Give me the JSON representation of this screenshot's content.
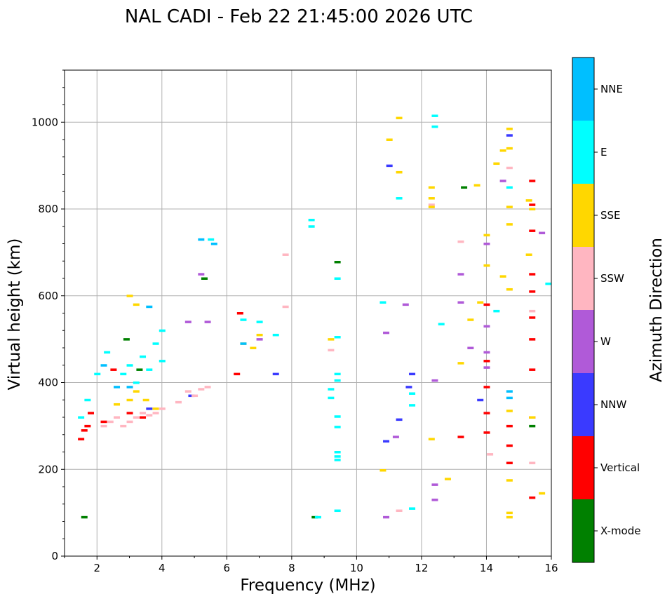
{
  "chart_data": {
    "type": "scatter",
    "title": "NAL CADI - Feb 22 21:45:00 2026 UTC",
    "xlabel": "Frequency (MHz)",
    "ylabel": "Virtual height (km)",
    "xlim": [
      1,
      16
    ],
    "ylim": [
      0,
      1120
    ],
    "xticks": [
      "2",
      "4",
      "6",
      "8",
      "10",
      "12",
      "14",
      "16"
    ],
    "yticks": [
      "0",
      "200",
      "400",
      "600",
      "800",
      "1000"
    ],
    "grid": true,
    "colorbar": {
      "label": "Azimuth Direction",
      "categories": [
        "X-mode",
        "Vertical",
        "NNW",
        "W",
        "SSW",
        "SSE",
        "E",
        "NNE"
      ],
      "colors": [
        "#008000",
        "#ff0000",
        "#3a3aff",
        "#b05ad8",
        "#ffb6c1",
        "#ffd700",
        "#00ffff",
        "#00bfff"
      ]
    },
    "series": [
      {
        "name": "X-mode",
        "points": [
          [
            1.6,
            90
          ],
          [
            8.7,
            90
          ],
          [
            13.3,
            850
          ],
          [
            15.4,
            300
          ],
          [
            9.4,
            678
          ],
          [
            3.3,
            430
          ],
          [
            2.9,
            500
          ],
          [
            5.3,
            640
          ]
        ]
      },
      {
        "name": "Vertical",
        "points": [
          [
            1.5,
            270
          ],
          [
            1.6,
            290
          ],
          [
            1.7,
            300
          ],
          [
            1.8,
            330
          ],
          [
            2.2,
            310
          ],
          [
            2.5,
            430
          ],
          [
            3.0,
            330
          ],
          [
            3.4,
            320
          ],
          [
            6.3,
            420
          ],
          [
            6.4,
            560
          ],
          [
            14.0,
            390
          ],
          [
            14.0,
            330
          ],
          [
            14.0,
            285
          ],
          [
            14.0,
            450
          ],
          [
            14.0,
            580
          ],
          [
            15.4,
            135
          ],
          [
            15.4,
            320
          ],
          [
            15.4,
            430
          ],
          [
            15.4,
            500
          ],
          [
            15.4,
            550
          ],
          [
            15.4,
            610
          ],
          [
            15.4,
            650
          ],
          [
            15.4,
            750
          ],
          [
            15.4,
            810
          ],
          [
            15.4,
            865
          ],
          [
            14.7,
            215
          ],
          [
            14.7,
            255
          ],
          [
            14.7,
            300
          ],
          [
            13.2,
            275
          ]
        ]
      },
      {
        "name": "NNW",
        "points": [
          [
            11.0,
            900
          ],
          [
            11.6,
            390
          ],
          [
            11.7,
            420
          ],
          [
            11.3,
            315
          ],
          [
            10.9,
            265
          ],
          [
            13.8,
            360
          ],
          [
            14.7,
            970
          ],
          [
            7.5,
            420
          ],
          [
            3.6,
            340
          ],
          [
            4.9,
            370
          ]
        ]
      },
      {
        "name": "W",
        "points": [
          [
            11.5,
            580
          ],
          [
            13.2,
            650
          ],
          [
            13.2,
            585
          ],
          [
            13.5,
            480
          ],
          [
            14.0,
            530
          ],
          [
            14.0,
            470
          ],
          [
            14.0,
            435
          ],
          [
            14.0,
            720
          ],
          [
            14.5,
            865
          ],
          [
            15.7,
            745
          ],
          [
            10.9,
            90
          ],
          [
            10.9,
            515
          ],
          [
            12.4,
            165
          ],
          [
            12.4,
            130
          ],
          [
            12.4,
            405
          ],
          [
            11.2,
            275
          ],
          [
            7.0,
            500
          ],
          [
            5.4,
            540
          ],
          [
            4.8,
            540
          ],
          [
            5.2,
            650
          ]
        ]
      },
      {
        "name": "SSW",
        "points": [
          [
            2.2,
            300
          ],
          [
            2.4,
            310
          ],
          [
            2.6,
            320
          ],
          [
            2.8,
            300
          ],
          [
            3.0,
            310
          ],
          [
            3.2,
            320
          ],
          [
            3.4,
            330
          ],
          [
            3.6,
            325
          ],
          [
            3.8,
            330
          ],
          [
            4.0,
            340
          ],
          [
            4.5,
            355
          ],
          [
            4.8,
            380
          ],
          [
            5.0,
            370
          ],
          [
            5.2,
            385
          ],
          [
            5.4,
            390
          ],
          [
            7.8,
            695
          ],
          [
            7.8,
            575
          ],
          [
            9.2,
            475
          ],
          [
            11.3,
            105
          ],
          [
            14.1,
            235
          ],
          [
            14.7,
            895
          ],
          [
            15.4,
            215
          ],
          [
            15.4,
            565
          ],
          [
            13.2,
            725
          ],
          [
            12.3,
            810
          ]
        ]
      },
      {
        "name": "SSE",
        "points": [
          [
            2.6,
            350
          ],
          [
            3.0,
            360
          ],
          [
            3.2,
            380
          ],
          [
            3.5,
            360
          ],
          [
            3.8,
            340
          ],
          [
            3.0,
            600
          ],
          [
            3.2,
            580
          ],
          [
            6.5,
            490
          ],
          [
            6.8,
            480
          ],
          [
            7.0,
            510
          ],
          [
            9.2,
            500
          ],
          [
            10.8,
            198
          ],
          [
            11.0,
            960
          ],
          [
            11.3,
            1010
          ],
          [
            11.3,
            885
          ],
          [
            12.3,
            270
          ],
          [
            12.3,
            850
          ],
          [
            12.3,
            825
          ],
          [
            12.3,
            805
          ],
          [
            12.8,
            178
          ],
          [
            13.2,
            445
          ],
          [
            13.5,
            545
          ],
          [
            13.8,
            585
          ],
          [
            14.0,
            740
          ],
          [
            14.0,
            670
          ],
          [
            14.3,
            905
          ],
          [
            14.5,
            935
          ],
          [
            14.5,
            645
          ],
          [
            14.7,
            985
          ],
          [
            14.7,
            940
          ],
          [
            14.7,
            805
          ],
          [
            14.7,
            765
          ],
          [
            14.7,
            615
          ],
          [
            14.7,
            335
          ],
          [
            14.7,
            175
          ],
          [
            14.7,
            100
          ],
          [
            14.7,
            90
          ],
          [
            15.3,
            820
          ],
          [
            15.3,
            695
          ],
          [
            15.4,
            800
          ],
          [
            15.7,
            145
          ],
          [
            15.4,
            320
          ],
          [
            13.7,
            855
          ]
        ]
      },
      {
        "name": "E",
        "points": [
          [
            1.5,
            320
          ],
          [
            1.7,
            360
          ],
          [
            2.0,
            420
          ],
          [
            2.3,
            470
          ],
          [
            2.8,
            420
          ],
          [
            3.0,
            440
          ],
          [
            3.2,
            400
          ],
          [
            3.4,
            460
          ],
          [
            3.6,
            430
          ],
          [
            3.8,
            490
          ],
          [
            4.0,
            450
          ],
          [
            4.0,
            520
          ],
          [
            5.5,
            730
          ],
          [
            6.5,
            545
          ],
          [
            7.0,
            540
          ],
          [
            7.5,
            510
          ],
          [
            8.6,
            775
          ],
          [
            8.6,
            760
          ],
          [
            9.2,
            385
          ],
          [
            9.2,
            365
          ],
          [
            9.4,
            640
          ],
          [
            9.4,
            505
          ],
          [
            9.4,
            420
          ],
          [
            9.4,
            405
          ],
          [
            9.4,
            322
          ],
          [
            9.4,
            298
          ],
          [
            9.4,
            240
          ],
          [
            9.4,
            230
          ],
          [
            9.4,
            222
          ],
          [
            9.4,
            105
          ],
          [
            10.8,
            585
          ],
          [
            11.3,
            825
          ],
          [
            11.7,
            375
          ],
          [
            11.7,
            348
          ],
          [
            11.7,
            110
          ],
          [
            12.4,
            1015
          ],
          [
            12.4,
            990
          ],
          [
            12.6,
            535
          ],
          [
            14.3,
            565
          ],
          [
            14.7,
            850
          ],
          [
            15.9,
            628
          ],
          [
            8.8,
            90
          ]
        ]
      },
      {
        "name": "NNE",
        "points": [
          [
            2.2,
            440
          ],
          [
            2.6,
            390
          ],
          [
            3.0,
            390
          ],
          [
            3.6,
            575
          ],
          [
            5.2,
            730
          ],
          [
            5.6,
            720
          ],
          [
            6.5,
            490
          ],
          [
            14.7,
            365
          ],
          [
            14.7,
            380
          ]
        ]
      }
    ]
  }
}
